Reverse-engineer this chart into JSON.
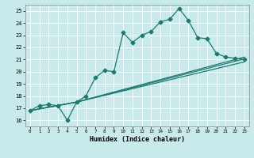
{
  "xlabel": "Humidex (Indice chaleur)",
  "bg_color": "#c8eaea",
  "grid_color": "#ffffff",
  "line_color": "#1a7a6e",
  "xlim": [
    -0.5,
    23.5
  ],
  "ylim": [
    15.5,
    25.5
  ],
  "xticks": [
    0,
    1,
    2,
    3,
    4,
    5,
    6,
    7,
    8,
    9,
    10,
    11,
    12,
    13,
    14,
    15,
    16,
    17,
    18,
    19,
    20,
    21,
    22,
    23
  ],
  "yticks": [
    16,
    17,
    18,
    19,
    20,
    21,
    22,
    23,
    24,
    25
  ],
  "line1_x": [
    0,
    1,
    2,
    3,
    4,
    5,
    6,
    7,
    8,
    9,
    10,
    11,
    12,
    13,
    14,
    15,
    16,
    17,
    18,
    19,
    20,
    21,
    22,
    23
  ],
  "line1_y": [
    16.8,
    17.2,
    17.3,
    17.2,
    16.0,
    17.5,
    18.0,
    19.5,
    20.1,
    20.0,
    23.2,
    22.4,
    23.0,
    23.3,
    24.1,
    24.3,
    25.2,
    24.2,
    22.8,
    22.7,
    21.5,
    21.2,
    21.1,
    21.0
  ],
  "line2_x": [
    0,
    5,
    23
  ],
  "line2_y": [
    16.8,
    17.5,
    21.2
  ],
  "line3_x": [
    0,
    5,
    23
  ],
  "line3_y": [
    16.8,
    17.5,
    21.05
  ],
  "line4_x": [
    0,
    5,
    23
  ],
  "line4_y": [
    16.8,
    17.5,
    20.8
  ]
}
